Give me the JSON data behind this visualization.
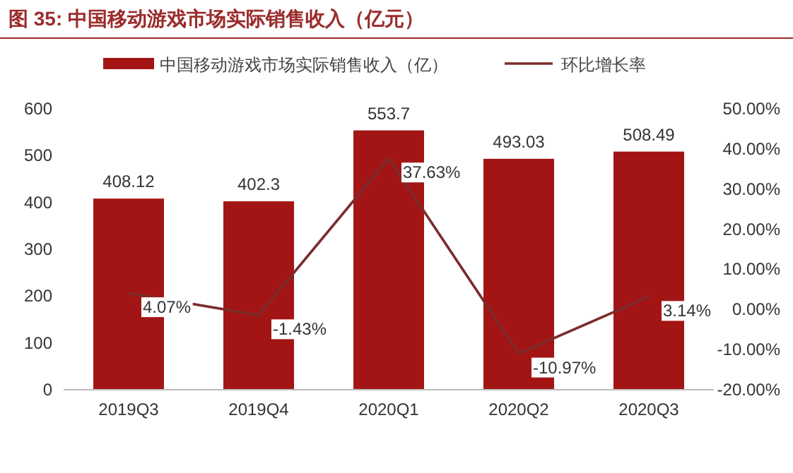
{
  "chart_data": {
    "type": "bar",
    "title": "图 35: 中国移动游戏市场实际销售收入（亿元）",
    "categories": [
      "2019Q3",
      "2019Q4",
      "2020Q1",
      "2020Q2",
      "2020Q3"
    ],
    "series": [
      {
        "name": "中国移动游戏市场实际销售收入（亿）",
        "color": "#a31515",
        "values": [
          408.12,
          402.3,
          553.7,
          493.03,
          508.49
        ],
        "value_labels": [
          "408.12",
          "402.3",
          "553.7",
          "493.03",
          "508.49"
        ]
      },
      {
        "name": "环比增长率",
        "type": "line",
        "axis": "y2",
        "color": "#7b2c2c",
        "values": [
          4.07,
          -1.43,
          37.63,
          -10.97,
          3.14
        ],
        "value_labels": [
          "4.07%",
          "-1.43%",
          "37.63%",
          "-10.97%",
          "3.14%"
        ]
      }
    ],
    "ylim": [
      0,
      600
    ],
    "yticks": [
      0,
      100,
      200,
      300,
      400,
      500,
      600
    ],
    "y2lim": [
      -20,
      50
    ],
    "y2ticks": [
      {
        "value": -20,
        "label": "-20.00%"
      },
      {
        "value": -10,
        "label": "-10.00%"
      },
      {
        "value": 0,
        "label": "0.00%"
      },
      {
        "value": 10,
        "label": "10.00%"
      },
      {
        "value": 20,
        "label": "20.00%"
      },
      {
        "value": 30,
        "label": "30.00%"
      },
      {
        "value": 40,
        "label": "40.00%"
      },
      {
        "value": 50,
        "label": "50.00%"
      }
    ],
    "legend": "top",
    "grid": false
  }
}
